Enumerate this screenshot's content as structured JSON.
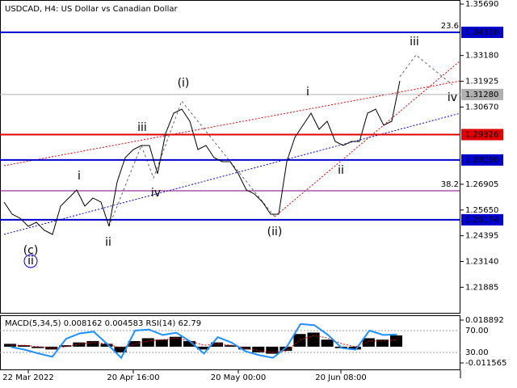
{
  "chart_data": [
    {
      "type": "line",
      "title": "USDCAD, H4:  US Dollar vs Canadian Dollar",
      "xlim": [
        0,
        570
      ],
      "ylim": [
        1.20599,
        1.35887
      ],
      "xticks": [
        {
          "value": 35,
          "label": "22 Mar 2022"
        },
        {
          "value": 165,
          "label": "20 Apr 16:00"
        },
        {
          "value": 295,
          "label": "20 May 00:00"
        },
        {
          "value": 422,
          "label": "20 Jun 08:00"
        }
      ],
      "yticks": [
        {
          "value": 1.3569,
          "label": "1.35690"
        },
        {
          "value": 1.3318,
          "label": "1.33180"
        },
        1.31925,
        {
          "value": 1.3067,
          "label": "1.30670"
        },
        1.26905,
        {
          "value": 1.2565,
          "label": "1.25650"
        },
        1.24395,
        {
          "value": 1.2314,
          "label": "1.23140"
        },
        1.21885
      ],
      "series": [
        {
          "color": "#000000",
          "x": [
            5,
            15,
            25,
            35,
            45,
            55,
            65,
            75,
            85,
            95,
            105,
            115,
            125,
            135,
            145,
            155,
            165,
            175,
            185,
            195,
            205,
            215,
            225,
            235,
            245,
            255,
            265,
            275,
            285,
            295,
            305,
            315,
            325,
            335,
            345,
            355,
            365,
            375,
            385,
            395,
            405,
            415,
            425,
            435,
            445,
            455,
            465,
            475,
            485,
            495
          ],
          "values": [
            1.26037,
            1.25446,
            1.25249,
            1.24855,
            1.25052,
            1.24658,
            1.24461,
            1.2584,
            1.26234,
            1.26628,
            1.2584,
            1.26234,
            1.26037,
            1.24855,
            1.27022,
            1.28204,
            1.28598,
            1.28795,
            1.28795,
            1.27416,
            1.29386,
            1.30371,
            1.30568,
            1.29977,
            1.28598,
            1.28795,
            1.28204,
            1.28007,
            1.28007,
            1.27416,
            1.26628,
            1.26431,
            1.26037,
            1.25446,
            1.25446,
            1.28007,
            1.29189,
            1.2978,
            1.30371,
            1.29583,
            1.29977,
            1.28992,
            1.28795,
            1.28992,
            1.28992,
            1.30371,
            1.30568,
            1.2978,
            1.29977,
            1.31947
          ]
        }
      ],
      "levels": [
        {
          "value": 1.3431,
          "label": "1.34310",
          "color": "#0000cc"
        },
        {
          "value": 1.3128,
          "label": "1.31280",
          "color": "#b0b0b0"
        },
        {
          "value": 1.29326,
          "label": "1.29326",
          "color": "#e00000"
        },
        {
          "value": 1.2809,
          "label": "1.28090",
          "color": "#0000cc"
        },
        {
          "value": 1.25174,
          "label": "1.25174",
          "color": "#0000cc"
        }
      ],
      "fib": [
        {
          "value": 1.3431,
          "label": "23.6",
          "color": "#0000cc"
        },
        {
          "value": 1.26589,
          "label": "38.2",
          "color": "#800080"
        }
      ],
      "annotations": [
        {
          "text": "(i)",
          "x": 227,
          "y": 1.31829,
          "color": "#d00000"
        },
        {
          "text": "(ii)",
          "x": 340,
          "y": 1.24579,
          "color": "#d00000"
        },
        {
          "text": "(c)",
          "x": 38,
          "y": 1.23673,
          "color": "#d00000"
        },
        {
          "text": "ii",
          "x": 38,
          "y": 1.23161,
          "color": "#0000cc"
        },
        {
          "text": "i",
          "x": 98,
          "y": 1.27298,
          "color": "#707070"
        },
        {
          "text": "ii",
          "x": 134,
          "y": 1.24067,
          "color": "#707070"
        },
        {
          "text": "iii",
          "x": 176,
          "y": 1.29662,
          "color": "#707070"
        },
        {
          "text": "iv",
          "x": 193,
          "y": 1.2647,
          "color": "#707070"
        },
        {
          "text": "i",
          "x": 381,
          "y": 1.31395,
          "color": "#707070"
        },
        {
          "text": "ii",
          "x": 422,
          "y": 1.27574,
          "color": "#707070"
        },
        {
          "text": "iii",
          "x": 513,
          "y": 1.33838,
          "color": "#707070"
        },
        {
          "text": "iv",
          "x": 560,
          "y": 1.3112,
          "color": "#707070"
        }
      ]
    },
    {
      "type": "bar",
      "title": "MACD(5,34,5) 0.008162 0.004583 RSI(14) 62.79",
      "ylim": [
        -0.01674,
        0.02234
      ],
      "yticks": [
        0.018892,
        -0.011565
      ],
      "y2lim": [
        -2.6,
        98.1
      ],
      "y2ticks": [
        {
          "value": 70,
          "label": "70.00"
        },
        {
          "value": 30,
          "label": "30.00"
        }
      ],
      "series": [
        {
          "color": "#000000",
          "values": [
            0.002,
            0.001,
            -0.001,
            -0.002,
            0.001,
            0.003,
            0.004,
            0.002,
            -0.004,
            0.004,
            0.006,
            0.005,
            0.007,
            0.004,
            -0.002,
            0.003,
            0.001,
            -0.002,
            -0.004,
            -0.005,
            -0.003,
            0.009,
            0.01,
            0.005,
            -0.001,
            -0.002,
            0.006,
            0.005,
            0.008
          ]
        },
        {
          "color": "#e00000",
          "values": [
            0.001,
            0.001,
            0,
            -0.001,
            0,
            0.002,
            0.003,
            0.002,
            -0.001,
            0.002,
            0.004,
            0.005,
            0.006,
            0.004,
            0.001,
            0.002,
            0.001,
            -0.001,
            -0.003,
            -0.004,
            -0.003,
            0.005,
            0.008,
            0.006,
            0.002,
            0,
            0.004,
            0.004,
            0.005
          ]
        },
        {
          "color": "#1e90ff",
          "axis": "y2",
          "values": [
            40,
            35,
            28,
            22,
            55,
            65,
            68,
            45,
            20,
            70,
            72,
            62,
            66,
            50,
            28,
            58,
            48,
            32,
            25,
            20,
            40,
            82,
            80,
            62,
            38,
            35,
            70,
            62,
            63
          ]
        }
      ]
    }
  ]
}
